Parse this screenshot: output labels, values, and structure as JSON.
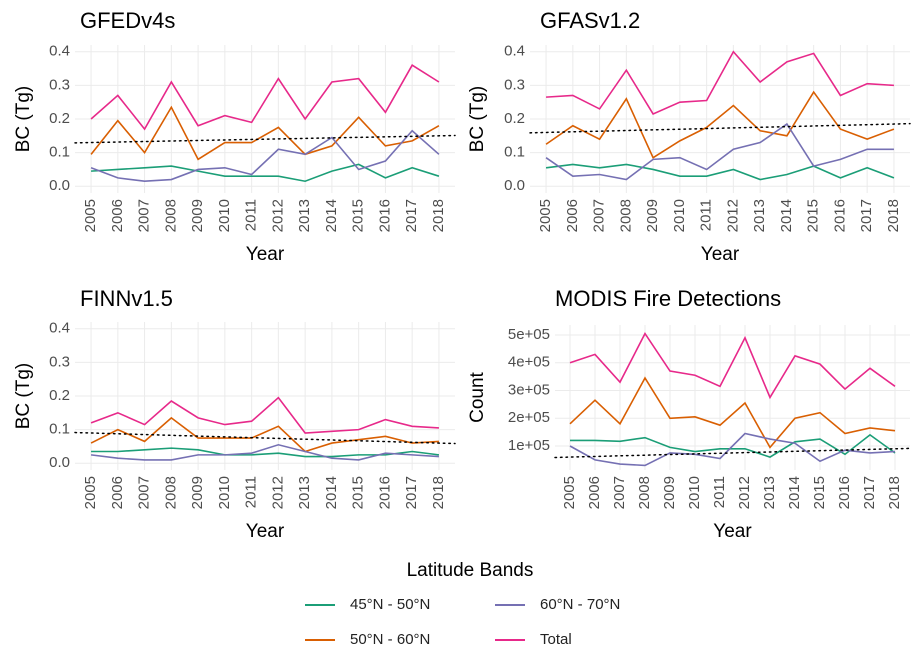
{
  "chart_data": [
    {
      "type": "line",
      "title": "GFEDv4s",
      "x_label": "Year",
      "y_label": "BC (Tg)",
      "x": [
        2005,
        2006,
        2007,
        2008,
        2009,
        2010,
        2011,
        2012,
        2013,
        2014,
        2015,
        2016,
        2017,
        2018
      ],
      "xlim": [
        2004.4,
        2018.6
      ],
      "ylim": [
        -0.02,
        0.42
      ],
      "yticks": [
        {
          "value": 0,
          "label": "0.0"
        },
        0.1,
        0.2,
        0.3,
        0.4
      ],
      "grid": true,
      "series": [
        {
          "values": [
            0.045,
            0.05,
            0.055,
            0.06,
            0.045,
            0.03,
            0.03,
            0.03,
            0.015,
            0.045,
            0.065,
            0.025,
            0.055,
            0.03
          ]
        },
        {
          "values": [
            0.095,
            0.195,
            0.1,
            0.235,
            0.08,
            0.13,
            0.13,
            0.175,
            0.095,
            0.12,
            0.205,
            0.12,
            0.135,
            0.18
          ]
        },
        {
          "values": [
            0.055,
            0.025,
            0.015,
            0.02,
            0.05,
            0.055,
            0.035,
            0.11,
            0.095,
            0.145,
            0.05,
            0.075,
            0.165,
            0.095
          ]
        },
        {
          "values": [
            0.2,
            0.27,
            0.17,
            0.31,
            0.18,
            0.21,
            0.19,
            0.32,
            0.2,
            0.31,
            0.32,
            0.22,
            0.36,
            0.31
          ]
        }
      ],
      "trend_line": {
        "x": [
          2005,
          2018
        ],
        "values": [
          0.13,
          0.15
        ]
      }
    },
    {
      "type": "line",
      "title": "GFASv1.2",
      "x_label": "Year",
      "y_label": "BC (Tg)",
      "x": [
        2005,
        2006,
        2007,
        2008,
        2009,
        2010,
        2011,
        2012,
        2013,
        2014,
        2015,
        2016,
        2017,
        2018
      ],
      "xlim": [
        2004.4,
        2018.6
      ],
      "ylim": [
        -0.02,
        0.42
      ],
      "yticks": [
        {
          "value": 0,
          "label": "0.0"
        },
        0.1,
        0.2,
        0.3,
        0.4
      ],
      "grid": true,
      "series": [
        {
          "values": [
            0.055,
            0.065,
            0.055,
            0.065,
            0.05,
            0.03,
            0.03,
            0.05,
            0.02,
            0.035,
            0.06,
            0.025,
            0.055,
            0.025
          ]
        },
        {
          "values": [
            0.125,
            0.18,
            0.14,
            0.26,
            0.085,
            0.135,
            0.175,
            0.24,
            0.165,
            0.15,
            0.28,
            0.17,
            0.14,
            0.17
          ]
        },
        {
          "values": [
            0.085,
            0.03,
            0.035,
            0.02,
            0.08,
            0.085,
            0.05,
            0.11,
            0.13,
            0.185,
            0.06,
            0.08,
            0.11,
            0.11
          ]
        },
        {
          "values": [
            0.265,
            0.27,
            0.23,
            0.345,
            0.215,
            0.25,
            0.255,
            0.4,
            0.31,
            0.37,
            0.395,
            0.27,
            0.305,
            0.3
          ]
        }
      ],
      "trend_line": {
        "x": [
          2005,
          2018
        ],
        "values": [
          0.16,
          0.185
        ]
      }
    },
    {
      "type": "line",
      "title": "FINNv1.5",
      "x_label": "Year",
      "y_label": "BC (Tg)",
      "x": [
        2005,
        2006,
        2007,
        2008,
        2009,
        2010,
        2011,
        2012,
        2013,
        2014,
        2015,
        2016,
        2017,
        2018
      ],
      "xlim": [
        2004.4,
        2018.6
      ],
      "ylim": [
        -0.02,
        0.42
      ],
      "yticks": [
        {
          "value": 0,
          "label": "0.0"
        },
        0.1,
        0.2,
        0.3,
        0.4
      ],
      "grid": true,
      "series": [
        {
          "values": [
            0.035,
            0.035,
            0.04,
            0.045,
            0.04,
            0.025,
            0.025,
            0.03,
            0.02,
            0.02,
            0.025,
            0.025,
            0.035,
            0.025
          ]
        },
        {
          "values": [
            0.06,
            0.1,
            0.065,
            0.135,
            0.075,
            0.075,
            0.075,
            0.11,
            0.035,
            0.06,
            0.07,
            0.08,
            0.06,
            0.065
          ]
        },
        {
          "values": [
            0.025,
            0.015,
            0.01,
            0.01,
            0.025,
            0.025,
            0.03,
            0.055,
            0.035,
            0.015,
            0.01,
            0.03,
            0.025,
            0.02
          ]
        },
        {
          "values": [
            0.12,
            0.15,
            0.115,
            0.185,
            0.135,
            0.115,
            0.125,
            0.195,
            0.09,
            0.095,
            0.1,
            0.13,
            0.11,
            0.105
          ]
        }
      ],
      "trend_line": {
        "x": [
          2005,
          2018
        ],
        "values": [
          0.09,
          0.06
        ]
      }
    },
    {
      "type": "line",
      "title": "MODIS Fire Detections",
      "x_label": "Year",
      "y_label": "Count",
      "x": [
        2005,
        2006,
        2007,
        2008,
        2009,
        2010,
        2011,
        2012,
        2013,
        2014,
        2015,
        2016,
        2017,
        2018
      ],
      "xlim": [
        2004.4,
        2018.6
      ],
      "ylim": [
        13500,
        536000
      ],
      "yticks": [
        {
          "value": 100000,
          "label": "1e+05"
        },
        {
          "value": 200000,
          "label": "2e+05"
        },
        {
          "value": 300000,
          "label": "3e+05"
        },
        {
          "value": 400000,
          "label": "4e+05"
        },
        {
          "value": 500000,
          "label": "5e+05"
        }
      ],
      "grid": true,
      "series": [
        {
          "values": [
            120000,
            120000,
            117000,
            130000,
            95000,
            80000,
            90000,
            90000,
            60000,
            115000,
            125000,
            70000,
            140000,
            75000
          ]
        },
        {
          "values": [
            180000,
            265000,
            180000,
            345000,
            200000,
            205000,
            175000,
            255000,
            95000,
            200000,
            220000,
            145000,
            165000,
            155000
          ]
        },
        {
          "values": [
            100000,
            50000,
            35000,
            30000,
            75000,
            70000,
            55000,
            145000,
            125000,
            110000,
            45000,
            85000,
            75000,
            80000
          ]
        },
        {
          "values": [
            400000,
            430000,
            330000,
            505000,
            370000,
            355000,
            315000,
            490000,
            275000,
            425000,
            395000,
            305000,
            380000,
            315000
          ]
        }
      ],
      "trend_line": {
        "x": [
          2005,
          2018
        ],
        "values": [
          60000,
          90000
        ]
      }
    }
  ],
  "legend": {
    "title": "Latitude Bands",
    "items": [
      {
        "name": "45°N - 50°N",
        "color": "#1b9e77"
      },
      {
        "name": "50°N - 60°N",
        "color": "#d95f02"
      },
      {
        "name": "60°N - 70°N",
        "color": "#7570b3"
      },
      {
        "name": "Total",
        "color": "#e7298a"
      }
    ]
  }
}
